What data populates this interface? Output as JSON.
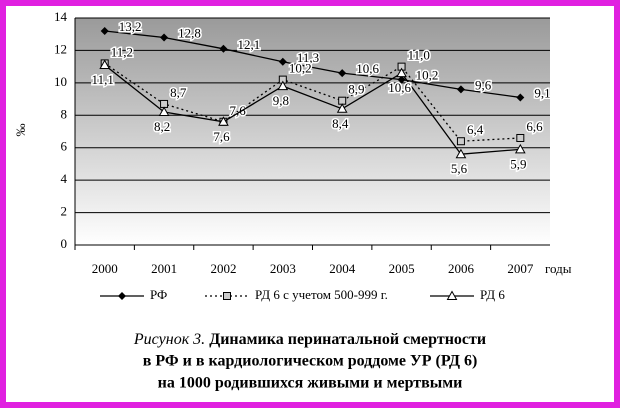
{
  "chart_data": {
    "type": "line",
    "y_label": "‰",
    "x_label": "годы",
    "categories": [
      "2000",
      "2001",
      "2002",
      "2003",
      "2004",
      "2005",
      "2006",
      "2007"
    ],
    "series": [
      {
        "name": "РФ",
        "color": "#000000",
        "marker": "diamond",
        "dash": "solid",
        "values": [
          13.2,
          12.8,
          12.1,
          11.3,
          10.6,
          10.2,
          9.6,
          9.1
        ],
        "value_labels": [
          "13,2",
          "12,8",
          "12,1",
          "11,3",
          "10,6",
          "10,2",
          "9,6",
          "9,1"
        ]
      },
      {
        "name": "РД 6 с учетом 500-999 г.",
        "color": "#000000",
        "marker": "square",
        "dash": "dotted",
        "values": [
          11.2,
          8.7,
          7.6,
          10.2,
          8.9,
          11.0,
          6.4,
          6.6
        ],
        "value_labels": [
          "11,2",
          "8,7",
          "7,6",
          "10,2",
          "8,9",
          "11,0",
          "6,4",
          "6,6"
        ]
      },
      {
        "name": "РД 6",
        "color": "#000000",
        "marker": "triangle",
        "dash": "solid",
        "values": [
          11.1,
          8.2,
          7.6,
          9.8,
          8.4,
          10.6,
          5.6,
          5.9
        ],
        "value_labels": [
          "11,1",
          "8,2",
          "7,6",
          "9,8",
          "8,4",
          "10,6",
          "5,6",
          "5,9"
        ]
      }
    ],
    "ylim": [
      0,
      14
    ],
    "yticks": [
      0,
      2,
      4,
      6,
      8,
      10,
      12,
      14
    ],
    "grid": true,
    "caption_label": "Рисунок 3.",
    "caption_lines": [
      "Динамика перинатальной смертности",
      "в РФ и в кардиологическом роддоме УР (РД 6)",
      "на 1000 родившихся живыми и мертвыми"
    ]
  }
}
